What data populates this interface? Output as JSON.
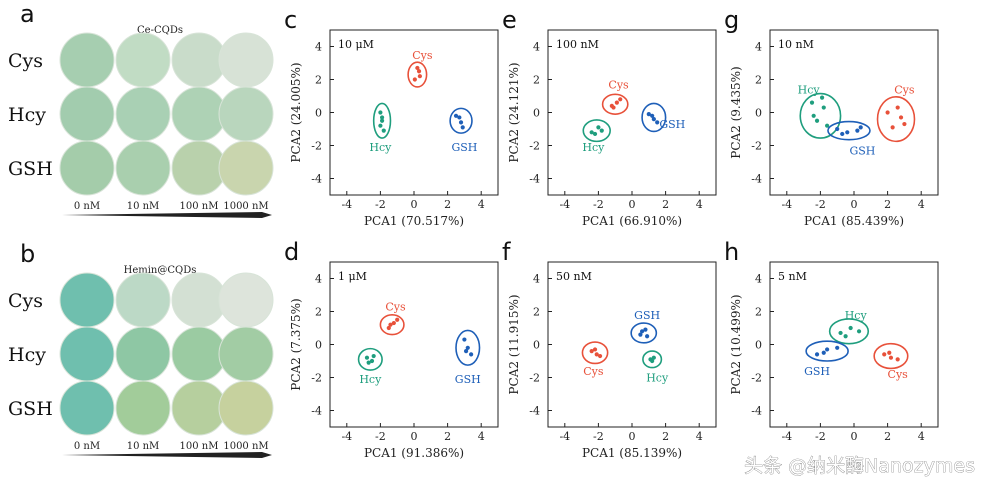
{
  "figure": {
    "panel_a": {
      "letter": "a",
      "title": "Ce-CQDs",
      "rows": [
        "Cys",
        "Hcy",
        "GSH"
      ],
      "concentrations": [
        "0 nM",
        "10 nM",
        "100 nM",
        "1000 nM"
      ],
      "well_colors": [
        [
          "#a6ceb0",
          "#c1dcc4",
          "#c9dcca",
          "#d7e2d6"
        ],
        [
          "#a2ccae",
          "#a9d0b4",
          "#aed2b5",
          "#b9d6bd"
        ],
        [
          "#a4ccaa",
          "#a9cfae",
          "#b9d1ac",
          "#c9d5ae"
        ]
      ]
    },
    "panel_b": {
      "letter": "b",
      "title": "Hemin@CQDs",
      "rows": [
        "Cys",
        "Hcy",
        "GSH"
      ],
      "concentrations": [
        "0 nM",
        "10 nM",
        "100 nM",
        "1000 nM"
      ],
      "well_colors": [
        [
          "#6fbfae",
          "#bcd9c6",
          "#d3e0d3",
          "#dde4db"
        ],
        [
          "#6fbfae",
          "#8ec7a4",
          "#9bcba2",
          "#a2cca4"
        ],
        [
          "#6fbfae",
          "#a2cc9a",
          "#b6cf9e",
          "#c6d19e"
        ]
      ]
    },
    "group_colors": {
      "Cys": "#e8513a",
      "Hcy": "#1f9e7e",
      "GSH": "#1e5fb8"
    },
    "watermark": "头条 @纳米酶Nanozymes"
  },
  "chart_data": [
    {
      "panel": "c",
      "type": "scatter",
      "concentration": "10 μM",
      "xlabel": "PCA1 (70.517%)",
      "ylabel": "PCA2 (24.005%)",
      "xlim": [
        -5,
        5
      ],
      "ylim": [
        -5,
        5
      ],
      "xticks": [
        -4,
        -2,
        0,
        2,
        4
      ],
      "yticks": [
        4,
        2,
        0,
        -2,
        -4
      ],
      "series": [
        {
          "name": "Cys",
          "center": [
            0.2,
            2.3
          ],
          "radii": [
            0.55,
            0.75
          ],
          "label_at": [
            0.5,
            3.5
          ],
          "points": [
            [
              0.05,
              2.0
            ],
            [
              0.3,
              2.5
            ],
            [
              0.2,
              2.7
            ],
            [
              0.35,
              2.2
            ]
          ]
        },
        {
          "name": "Hcy",
          "center": [
            -1.9,
            -0.5
          ],
          "radii": [
            0.5,
            1.05
          ],
          "label_at": [
            -2.0,
            -2.1
          ],
          "points": [
            [
              -2.0,
              0.0
            ],
            [
              -1.9,
              -0.5
            ],
            [
              -2.0,
              -0.8
            ],
            [
              -1.8,
              -1.1
            ],
            [
              -1.9,
              -0.3
            ]
          ]
        },
        {
          "name": "GSH",
          "center": [
            2.8,
            -0.5
          ],
          "radii": [
            0.65,
            0.75
          ],
          "label_at": [
            3.0,
            -2.1
          ],
          "points": [
            [
              2.5,
              -0.2
            ],
            [
              2.8,
              -0.6
            ],
            [
              2.9,
              -0.9
            ],
            [
              2.7,
              -0.3
            ]
          ]
        }
      ]
    },
    {
      "panel": "d",
      "type": "scatter",
      "concentration": "1 μM",
      "xlabel": "PCA1 (91.386%)",
      "ylabel": "PCA2 (7.375%)",
      "xlim": [
        -5,
        5
      ],
      "ylim": [
        -5,
        5
      ],
      "xticks": [
        -4,
        -2,
        0,
        2,
        4
      ],
      "yticks": [
        4,
        2,
        0,
        -2,
        -4
      ],
      "series": [
        {
          "name": "Cys",
          "center": [
            -1.3,
            1.2
          ],
          "radii": [
            0.7,
            0.6
          ],
          "label_at": [
            -1.1,
            2.3
          ],
          "points": [
            [
              -1.5,
              1.0
            ],
            [
              -1.2,
              1.3
            ],
            [
              -1.0,
              1.5
            ],
            [
              -1.4,
              1.2
            ]
          ]
        },
        {
          "name": "Hcy",
          "center": [
            -2.6,
            -0.9
          ],
          "radii": [
            0.7,
            0.65
          ],
          "label_at": [
            -2.6,
            -2.1
          ],
          "points": [
            [
              -2.8,
              -0.8
            ],
            [
              -2.5,
              -1.0
            ],
            [
              -2.4,
              -0.7
            ],
            [
              -2.7,
              -1.1
            ]
          ]
        },
        {
          "name": "GSH",
          "center": [
            3.2,
            -0.2
          ],
          "radii": [
            0.7,
            1.05
          ],
          "label_at": [
            3.2,
            -2.1
          ],
          "points": [
            [
              3.0,
              0.3
            ],
            [
              3.2,
              -0.2
            ],
            [
              3.4,
              -0.6
            ],
            [
              3.1,
              -0.4
            ]
          ]
        }
      ]
    },
    {
      "panel": "e",
      "type": "scatter",
      "concentration": "100 nM",
      "xlabel": "PCA1 (66.910%)",
      "ylabel": "PCA2 (24.121%)",
      "xlim": [
        -5,
        5
      ],
      "ylim": [
        -5,
        5
      ],
      "xticks": [
        -4,
        -2,
        0,
        2,
        4
      ],
      "yticks": [
        4,
        2,
        0,
        -2,
        -4
      ],
      "series": [
        {
          "name": "Cys",
          "center": [
            -1.0,
            0.5
          ],
          "radii": [
            0.75,
            0.6
          ],
          "label_at": [
            -0.8,
            1.7
          ],
          "points": [
            [
              -1.2,
              0.4
            ],
            [
              -0.9,
              0.6
            ],
            [
              -0.7,
              0.8
            ],
            [
              -1.1,
              0.3
            ]
          ]
        },
        {
          "name": "Hcy",
          "center": [
            -2.1,
            -1.1
          ],
          "radii": [
            0.8,
            0.65
          ],
          "label_at": [
            -2.3,
            -2.1
          ],
          "points": [
            [
              -2.4,
              -1.2
            ],
            [
              -2.0,
              -0.9
            ],
            [
              -1.8,
              -1.1
            ],
            [
              -2.2,
              -1.3
            ]
          ]
        },
        {
          "name": "GSH",
          "center": [
            1.3,
            -0.3
          ],
          "radii": [
            0.7,
            0.85
          ],
          "label_at": [
            2.4,
            -0.7
          ],
          "points": [
            [
              1.0,
              -0.1
            ],
            [
              1.3,
              -0.4
            ],
            [
              1.5,
              -0.6
            ],
            [
              1.2,
              -0.2
            ]
          ]
        }
      ]
    },
    {
      "panel": "f",
      "type": "scatter",
      "concentration": "50 nM",
      "xlabel": "PCA1 (85.139%)",
      "ylabel": "PCA2 (11.915%)",
      "xlim": [
        -5,
        5
      ],
      "ylim": [
        -5,
        5
      ],
      "xticks": [
        -4,
        -2,
        0,
        2,
        4
      ],
      "yticks": [
        4,
        2,
        0,
        -2,
        -4
      ],
      "series": [
        {
          "name": "Cys",
          "center": [
            -2.2,
            -0.5
          ],
          "radii": [
            0.75,
            0.65
          ],
          "label_at": [
            -2.3,
            -1.6
          ],
          "points": [
            [
              -2.4,
              -0.4
            ],
            [
              -2.1,
              -0.6
            ],
            [
              -2.2,
              -0.3
            ],
            [
              -1.9,
              -0.7
            ]
          ]
        },
        {
          "name": "GSH",
          "center": [
            0.7,
            0.7
          ],
          "radii": [
            0.75,
            0.6
          ],
          "label_at": [
            0.9,
            1.8
          ],
          "points": [
            [
              0.5,
              0.6
            ],
            [
              0.8,
              0.9
            ],
            [
              0.9,
              0.5
            ],
            [
              0.6,
              0.8
            ]
          ]
        },
        {
          "name": "Hcy",
          "center": [
            1.2,
            -0.9
          ],
          "radii": [
            0.55,
            0.5
          ],
          "label_at": [
            1.5,
            -2.0
          ],
          "points": [
            [
              1.1,
              -0.9
            ],
            [
              1.3,
              -0.8
            ],
            [
              1.2,
              -1.0
            ]
          ]
        }
      ]
    },
    {
      "panel": "g",
      "type": "scatter",
      "concentration": "10 nM",
      "xlabel": "PCA1 (85.439%)",
      "ylabel": "PCA2 (9.435%)",
      "xlim": [
        -5,
        5
      ],
      "ylim": [
        -5,
        5
      ],
      "xticks": [
        -4,
        -2,
        0,
        2,
        4
      ],
      "yticks": [
        4,
        2,
        0,
        -2,
        -4
      ],
      "series": [
        {
          "name": "Hcy",
          "center": [
            -2.0,
            -0.2
          ],
          "radii": [
            1.2,
            1.35
          ],
          "label_at": [
            -2.7,
            1.4
          ],
          "points": [
            [
              -2.5,
              0.6
            ],
            [
              -1.8,
              0.3
            ],
            [
              -2.2,
              -0.5
            ],
            [
              -1.6,
              -0.8
            ],
            [
              -2.4,
              -0.2
            ],
            [
              -1.9,
              0.9
            ]
          ]
        },
        {
          "name": "GSH",
          "center": [
            -0.3,
            -1.1
          ],
          "radii": [
            1.25,
            0.55
          ],
          "label_at": [
            0.5,
            -2.3
          ],
          "points": [
            [
              -1.0,
              -1.0
            ],
            [
              -0.4,
              -1.2
            ],
            [
              0.2,
              -1.1
            ],
            [
              -0.7,
              -1.3
            ],
            [
              0.4,
              -0.9
            ]
          ]
        },
        {
          "name": "Cys",
          "center": [
            2.5,
            -0.4
          ],
          "radii": [
            1.1,
            1.35
          ],
          "label_at": [
            3.0,
            1.4
          ],
          "points": [
            [
              2.0,
              0.0
            ],
            [
              2.8,
              -0.3
            ],
            [
              2.3,
              -0.9
            ],
            [
              3.0,
              -0.7
            ],
            [
              2.6,
              0.3
            ]
          ]
        }
      ]
    },
    {
      "panel": "h",
      "type": "scatter",
      "concentration": "5 nM",
      "xlabel": "",
      "ylabel": "PCA2 (10.499%)",
      "xlim": [
        -5,
        5
      ],
      "ylim": [
        -5,
        5
      ],
      "xticks": [
        -4,
        -2,
        0,
        2,
        4
      ],
      "yticks": [
        4,
        2,
        0,
        -2,
        -4
      ],
      "series": [
        {
          "name": "Hcy",
          "center": [
            -0.3,
            0.8
          ],
          "radii": [
            1.15,
            0.75
          ],
          "label_at": [
            0.1,
            1.8
          ],
          "points": [
            [
              -0.8,
              0.7
            ],
            [
              -0.2,
              1.0
            ],
            [
              0.3,
              0.8
            ],
            [
              -0.5,
              0.5
            ]
          ]
        },
        {
          "name": "GSH",
          "center": [
            -1.6,
            -0.4
          ],
          "radii": [
            1.25,
            0.6
          ],
          "label_at": [
            -2.2,
            -1.6
          ],
          "points": [
            [
              -2.2,
              -0.6
            ],
            [
              -1.6,
              -0.3
            ],
            [
              -1.0,
              -0.2
            ],
            [
              -1.8,
              -0.5
            ]
          ]
        },
        {
          "name": "Cys",
          "center": [
            2.2,
            -0.7
          ],
          "radii": [
            1.0,
            0.75
          ],
          "label_at": [
            2.6,
            -1.8
          ],
          "points": [
            [
              1.8,
              -0.6
            ],
            [
              2.2,
              -0.8
            ],
            [
              2.6,
              -0.9
            ],
            [
              2.1,
              -0.5
            ]
          ]
        }
      ]
    }
  ]
}
